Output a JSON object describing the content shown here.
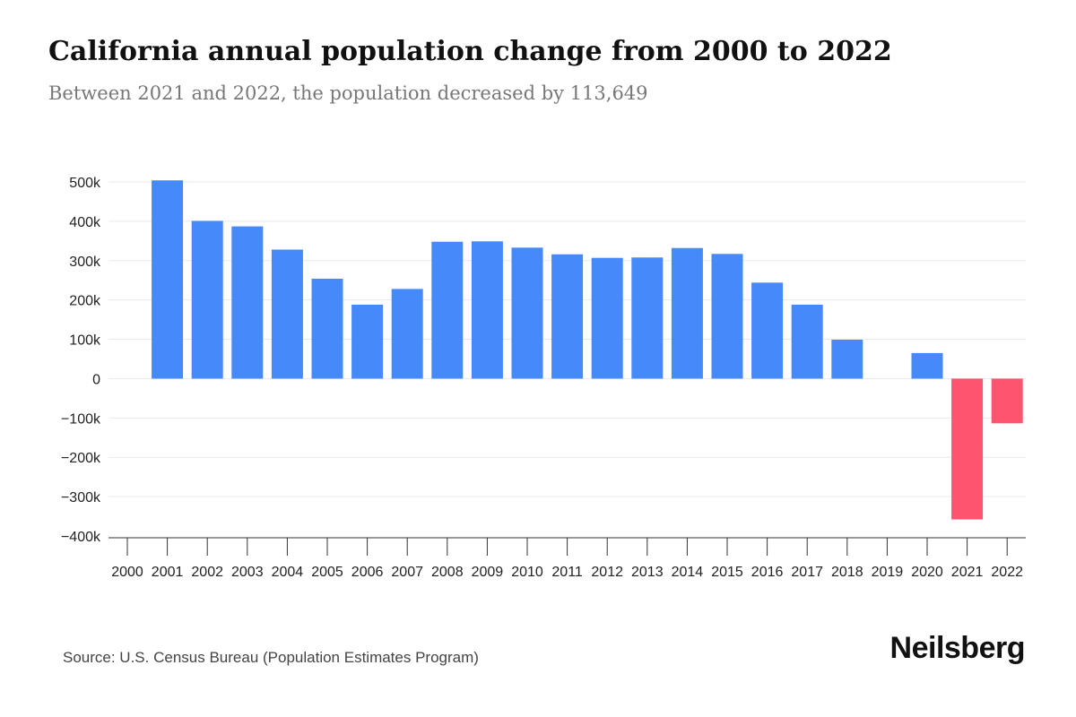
{
  "chart_data": {
    "type": "bar",
    "title": "California annual population change from 2000 to 2022",
    "subtitle": "Between 2021 and 2022, the population decreased by 113,649",
    "xlabel": "",
    "ylabel": "",
    "categories": [
      "2000",
      "2001",
      "2002",
      "2003",
      "2004",
      "2005",
      "2006",
      "2007",
      "2008",
      "2009",
      "2010",
      "2011",
      "2012",
      "2013",
      "2014",
      "2015",
      "2016",
      "2017",
      "2018",
      "2019",
      "2020",
      "2021",
      "2022"
    ],
    "values": [
      null,
      504000,
      401000,
      387000,
      328000,
      254000,
      188000,
      228000,
      348000,
      349000,
      333000,
      316000,
      307000,
      308000,
      332000,
      317000,
      244000,
      188000,
      99000,
      null,
      65000,
      -358000,
      -113649
    ],
    "ylim": [
      -400000,
      500000
    ],
    "yticks": [
      500000,
      400000,
      300000,
      200000,
      100000,
      0,
      -100000,
      -200000,
      -300000,
      -400000
    ],
    "ytick_labels": [
      "500k",
      "400k",
      "300k",
      "200k",
      "100k",
      "0",
      "−100k",
      "−200k",
      "−300k",
      "−400k"
    ],
    "grid": true,
    "colors": {
      "positive": "#4689f8",
      "negative": "#ff5470",
      "grid": "#e9e9e9",
      "axis": "#333333",
      "tick_text": "#222222"
    }
  },
  "footer": {
    "source": "Source: U.S. Census Bureau (Population Estimates Program)",
    "brand": "Neilsberg"
  }
}
